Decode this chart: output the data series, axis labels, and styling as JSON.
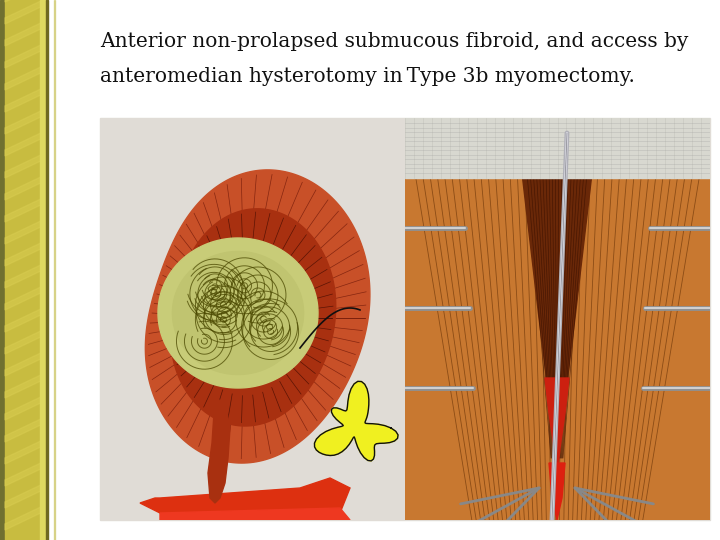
{
  "title_line1": "Anterior non-prolapsed submucous fibroid, and access by",
  "title_line2": "anteromedian hysterotomy in Type 3b myomectomy.",
  "title_fontsize": 14.5,
  "title_color": "#111111",
  "bg_color": "#ffffff",
  "stripe_color_dark": "#8a8020",
  "stripe_color_mid": "#c8bc40",
  "stripe_color_light": "#ddd060",
  "stripe_color_highlight": "#e8e078",
  "stripe_right_edge": "#b0a030",
  "img_bg": "#e8e8e4",
  "uterus_outer": "#c85028",
  "uterus_mid": "#b83818",
  "uterus_dark": "#7a1808",
  "fibroid_color": "#c8cc78",
  "fibroid_line": "#606020",
  "red_bright": "#dd2000",
  "yellow_blob": "#f0f020",
  "yellow_outline": "#101010",
  "surgical_tissue": "#c87830",
  "surgical_dark": "#6a3010",
  "surgical_cut": "#8a1808",
  "surgical_red": "#cc2010",
  "gauze_color": "#d8d8d0",
  "metal_color": "#909090",
  "metal_dark": "#505050"
}
